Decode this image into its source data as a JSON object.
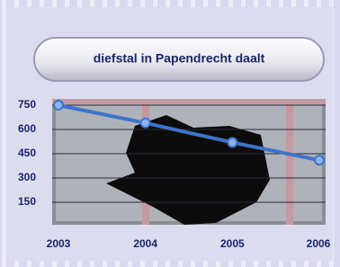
{
  "chart_data": {
    "type": "line",
    "title": "diefstal in Papendrecht daalt",
    "categories": [
      "2003",
      "2004",
      "2005",
      "2006"
    ],
    "series": [
      {
        "color": "#3d74c9",
        "values": [
          750,
          640,
          520,
          410
        ]
      }
    ],
    "ylim": [
      0,
      750
    ],
    "yticks": [
      150,
      300,
      450,
      600,
      750
    ],
    "grid": true
  }
}
